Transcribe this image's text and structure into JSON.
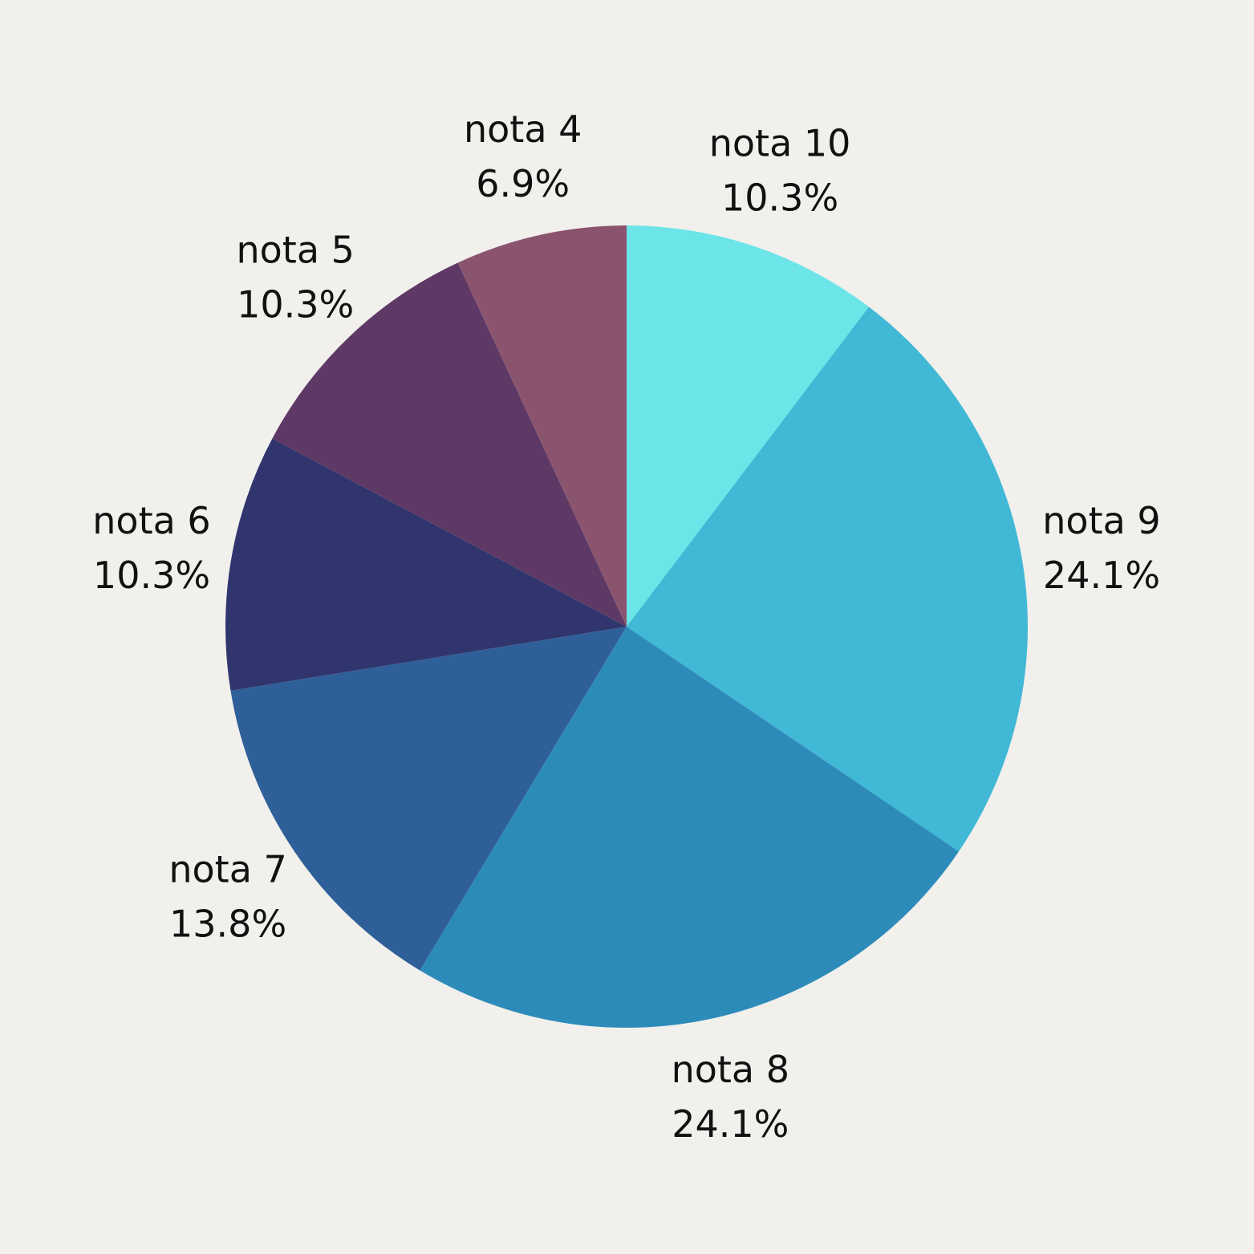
{
  "chart_data": {
    "type": "pie",
    "title": "",
    "start": "12 o'clock",
    "direction": "clockwise",
    "slices": [
      {
        "label": "nota 10",
        "value": 10.3,
        "display": "10.3%",
        "color": "#6ce5e8"
      },
      {
        "label": "nota 9",
        "value": 24.1,
        "display": "24.1%",
        "color": "#41b8d5"
      },
      {
        "label": "nota 8",
        "value": 24.1,
        "display": "24.1%",
        "color": "#2d8bba"
      },
      {
        "label": "nota 7",
        "value": 13.8,
        "display": "13.8%",
        "color": "#2f5f98"
      },
      {
        "label": "nota 6",
        "value": 10.3,
        "display": "10.3%",
        "color": "#31356e"
      },
      {
        "label": "nota 5",
        "value": 10.3,
        "display": "10.3%",
        "color": "#5e3965"
      },
      {
        "label": "nota 4",
        "value": 6.9,
        "display": "6.9%",
        "color": "#8a546f"
      }
    ]
  }
}
